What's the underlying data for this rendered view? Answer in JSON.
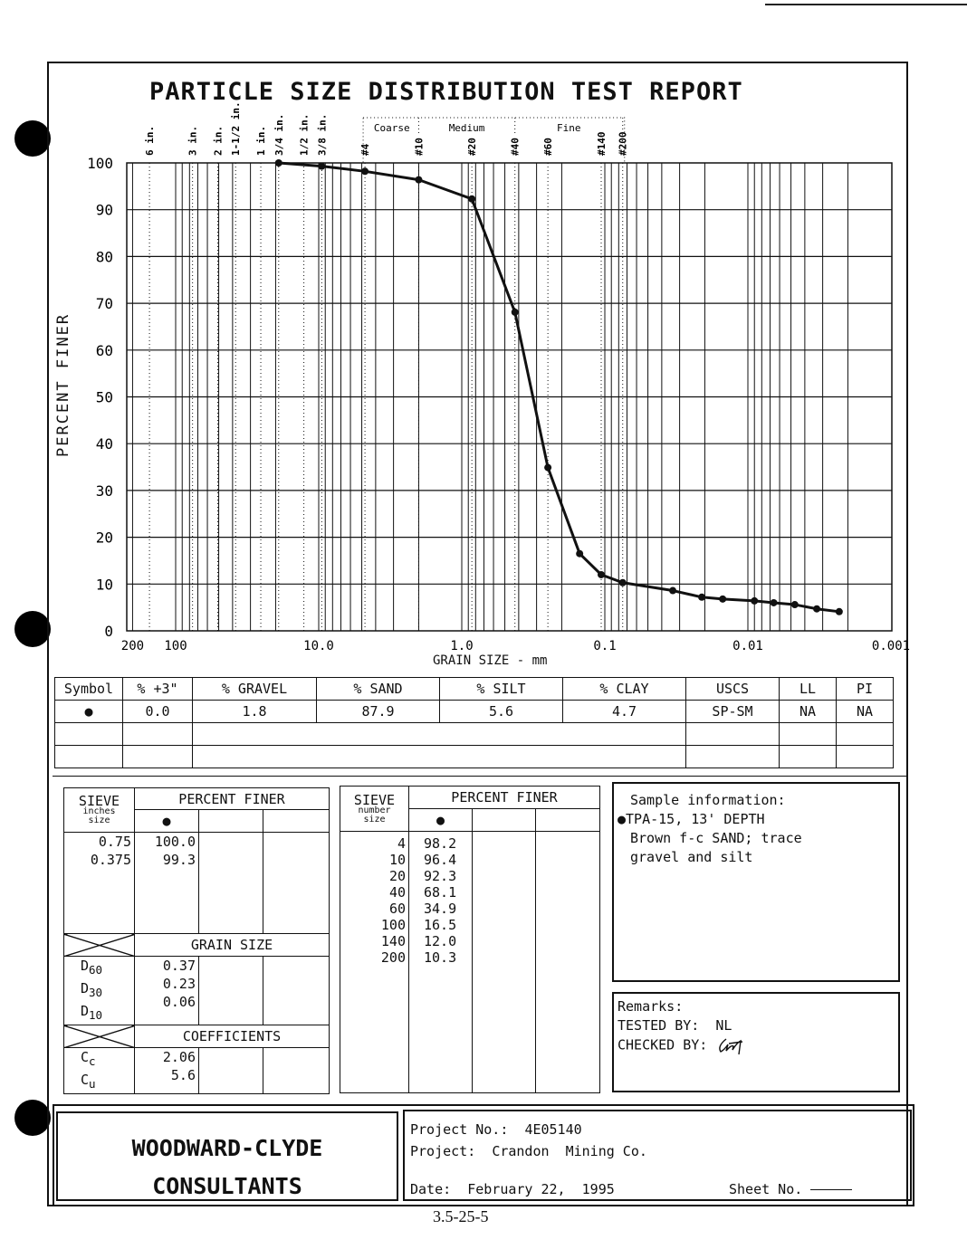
{
  "title": "PARTICLE SIZE DISTRIBUTION TEST REPORT",
  "chart_data": {
    "type": "line",
    "title": "PARTICLE SIZE DISTRIBUTION TEST REPORT",
    "xlabel": "GRAIN SIZE - mm",
    "ylabel": "PERCENT FINER",
    "xscale": "log",
    "xlim": [
      200,
      0.001
    ],
    "ylim": [
      0,
      100
    ],
    "grid": true,
    "x_ticks": [
      {
        "v": 200,
        "label": "200"
      },
      {
        "v": 100,
        "label": "100"
      },
      {
        "v": 10,
        "label": "10.0"
      },
      {
        "v": 1,
        "label": "1.0"
      },
      {
        "v": 0.1,
        "label": "0.1"
      },
      {
        "v": 0.01,
        "label": "0.01"
      },
      {
        "v": 0.001,
        "label": "0.001"
      }
    ],
    "y_ticks": [
      0,
      10,
      20,
      30,
      40,
      50,
      60,
      70,
      80,
      90,
      100
    ],
    "sieves": [
      {
        "label": "6 in.",
        "mm": 152.4
      },
      {
        "label": "3 in.",
        "mm": 76.2
      },
      {
        "label": "2 in.",
        "mm": 50.8
      },
      {
        "label": "1-1/2 in.",
        "mm": 38.1
      },
      {
        "label": "1 in.",
        "mm": 25.4
      },
      {
        "label": "3/4 in.",
        "mm": 19.05
      },
      {
        "label": "1/2 in.",
        "mm": 12.7
      },
      {
        "label": "3/8 in.",
        "mm": 9.525
      },
      {
        "label": "#4",
        "mm": 4.75
      },
      {
        "label": "#10",
        "mm": 2.0
      },
      {
        "label": "#20",
        "mm": 0.85
      },
      {
        "label": "#40",
        "mm": 0.425
      },
      {
        "label": "#60",
        "mm": 0.25
      },
      {
        "label": "#140",
        "mm": 0.106
      },
      {
        "label": "#200",
        "mm": 0.075
      }
    ],
    "sand_zones": [
      {
        "label": "Coarse",
        "from": 4.75,
        "to": 2.0
      },
      {
        "label": "Medium",
        "from": 2.0,
        "to": 0.425
      },
      {
        "label": "Fine",
        "from": 0.425,
        "to": 0.075
      }
    ],
    "series": [
      {
        "name": "TPA-15, 13' DEPTH",
        "marker": "circle",
        "x": [
          19.05,
          9.525,
          4.75,
          2.0,
          0.85,
          0.425,
          0.25,
          0.15,
          0.106,
          0.075,
          0.0335,
          0.021,
          0.015,
          0.009,
          0.0066,
          0.0047,
          0.0033,
          0.0023
        ],
        "y": [
          100.0,
          99.3,
          98.2,
          96.4,
          92.3,
          68.1,
          34.9,
          16.5,
          12.0,
          10.3,
          8.6,
          7.2,
          6.8,
          6.4,
          6.0,
          5.6,
          4.7,
          4.1
        ]
      }
    ]
  },
  "summary": {
    "headers": [
      "Symbol",
      "% +3\"",
      "% GRAVEL",
      "% SAND",
      "% SILT",
      "% CLAY",
      "USCS",
      "LL",
      "PI"
    ],
    "row": [
      "●",
      "0.0",
      "1.8",
      "87.9",
      "5.6",
      "4.7",
      "SP-SM",
      "NA",
      "NA"
    ]
  },
  "sieve_inches": {
    "h_sieve": "SIEVE",
    "h_sub1": "inches",
    "h_sub2": "size",
    "h_pf": "PERCENT FINER",
    "symbol": "●",
    "sizes": "0.75\n0.375",
    "values": "100.0\n99.3",
    "grain_size": "GRAIN SIZE",
    "d_labels": [
      "D",
      "60",
      "D",
      "30",
      "D",
      "10"
    ],
    "d_values": "0.37\n0.23\n0.06",
    "coefficients": "COEFFICIENTS",
    "c_labels": [
      "C",
      "c",
      "C",
      "u"
    ],
    "c_values": "2.06\n5.6"
  },
  "sieve_number": {
    "h_sieve": "SIEVE",
    "h_sub1": "number",
    "h_sub2": "size",
    "h_pf": "PERCENT FINER",
    "symbol": "●",
    "sizes": "4\n10\n20\n40\n60\n100\n140\n200",
    "values": "98.2\n96.4\n92.3\n68.1\n34.9\n16.5\n12.0\n10.3"
  },
  "sample": {
    "heading": "Sample information:",
    "symbol": "●",
    "line1": "TPA-15, 13' DEPTH",
    "line2": "Brown f-c SAND; trace",
    "line3": "gravel and silt"
  },
  "remarks": {
    "heading": "Remarks:",
    "tested_label": "TESTED BY:",
    "tested": "NL",
    "checked_label": "CHECKED BY:",
    "checked_signature": "signature"
  },
  "footer": {
    "company1": "WOODWARD-CLYDE",
    "company2": "CONSULTANTS",
    "project_no_label": "Project No.:",
    "project_no": "4E05140",
    "project_label": "Project:",
    "project": "Crandon  Mining Co.",
    "date_label": "Date:",
    "date": "February 22,  1995",
    "sheet_label": "Sheet No.",
    "page_id": "3.5-25-5"
  }
}
